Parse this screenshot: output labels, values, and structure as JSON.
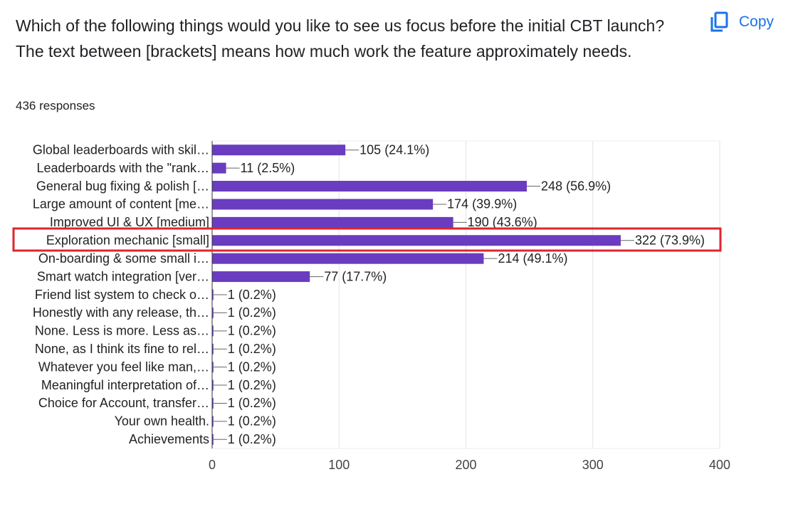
{
  "copy_label": "Copy",
  "chart_data": {
    "type": "barh",
    "title": "Which of the following things would you like to see us focus before the initial CBT launch? The text between [brackets] means how much work the feature approximately needs.",
    "subtitle": "436 responses",
    "categories": [
      "Global leaderboards with skil…",
      "Leaderboards with the \"rank…",
      "General bug fixing & polish […",
      "Large amount of content [me…",
      "Improved UI & UX [medium]",
      "Exploration mechanic [small]",
      "On-boarding & some small i…",
      "Smart watch integration [ver…",
      "Friend list system to check o…",
      "Honestly with any release, th…",
      "None. Less is more. Less as…",
      "None, as I think its fine to rel…",
      "Whatever you feel like man,…",
      "Meaningful interpretation of…",
      "Choice for Account, transfer…",
      "Your own health.",
      "Achievements"
    ],
    "values": [
      105,
      11,
      248,
      174,
      190,
      322,
      214,
      77,
      1,
      1,
      1,
      1,
      1,
      1,
      1,
      1,
      1
    ],
    "value_labels": [
      "105 (24.1%)",
      "11 (2.5%)",
      "248 (56.9%)",
      "174 (39.9%)",
      "190 (43.6%)",
      "322 (73.9%)",
      "214 (49.1%)",
      "77 (17.7%)",
      "1 (0.2%)",
      "1 (0.2%)",
      "1 (0.2%)",
      "1 (0.2%)",
      "1 (0.2%)",
      "1 (0.2%)",
      "1 (0.2%)",
      "1 (0.2%)",
      "1 (0.2%)"
    ],
    "color": "#6a3cc0",
    "xlim": [
      0,
      400
    ],
    "xticks": [
      0,
      100,
      200,
      300,
      400
    ],
    "grid": true
  }
}
